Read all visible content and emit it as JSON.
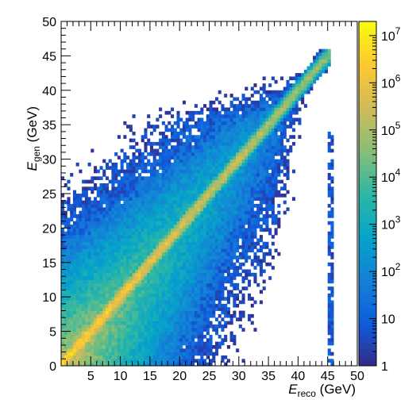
{
  "chart_data": {
    "type": "heatmap",
    "title": "",
    "xlabel": {
      "main": "E",
      "sub": "reco",
      "unit": " (GeV)"
    },
    "ylabel": {
      "main": "E",
      "sub": "gen",
      "unit": " (GeV)"
    },
    "xlim": [
      0,
      50
    ],
    "ylim": [
      0,
      50
    ],
    "x_tick_labels": [
      "5",
      "10",
      "15",
      "20",
      "25",
      "30",
      "35",
      "40",
      "45",
      "50"
    ],
    "y_tick_labels": [
      "0",
      "5",
      "10",
      "15",
      "20",
      "25",
      "30",
      "35",
      "40",
      "45",
      "50"
    ],
    "z_scale": "log",
    "zlim": [
      1,
      20000000
    ],
    "z_tick_labels": [
      {
        "value": 1,
        "base": "1",
        "exp": ""
      },
      {
        "value": 10,
        "base": "10",
        "exp": ""
      },
      {
        "value": 100,
        "base": "10",
        "exp": "2"
      },
      {
        "value": 1000,
        "base": "10",
        "exp": "3"
      },
      {
        "value": 10000,
        "base": "10",
        "exp": "4"
      },
      {
        "value": 100000,
        "base": "10",
        "exp": "5"
      },
      {
        "value": 1000000,
        "base": "10",
        "exp": "6"
      },
      {
        "value": 10000000,
        "base": "10",
        "exp": "7"
      }
    ],
    "colormap": [
      "#352a87",
      "#0f5cdd",
      "#1481d6",
      "#06a4ca",
      "#2eb7a4",
      "#87bf77",
      "#d1bb59",
      "#fec832",
      "#f9fb0e"
    ],
    "bins": {
      "x": 100,
      "y": 100
    },
    "distribution_notes": "2D histogram of E_gen vs E_reco; strong diagonal ridge (~1e6-1e7 counts) from (0,0) up to ~(45,45); broad populated region below the diagonal down to E_reco ~ 45 GeV and above it in the upper-left; sparse scattered bins elsewhere; a narrow column of entries near E_reco = 45.5 GeV; high-count warm region in lower-left corner (E_reco < 12, E_gen < 12)."
  }
}
